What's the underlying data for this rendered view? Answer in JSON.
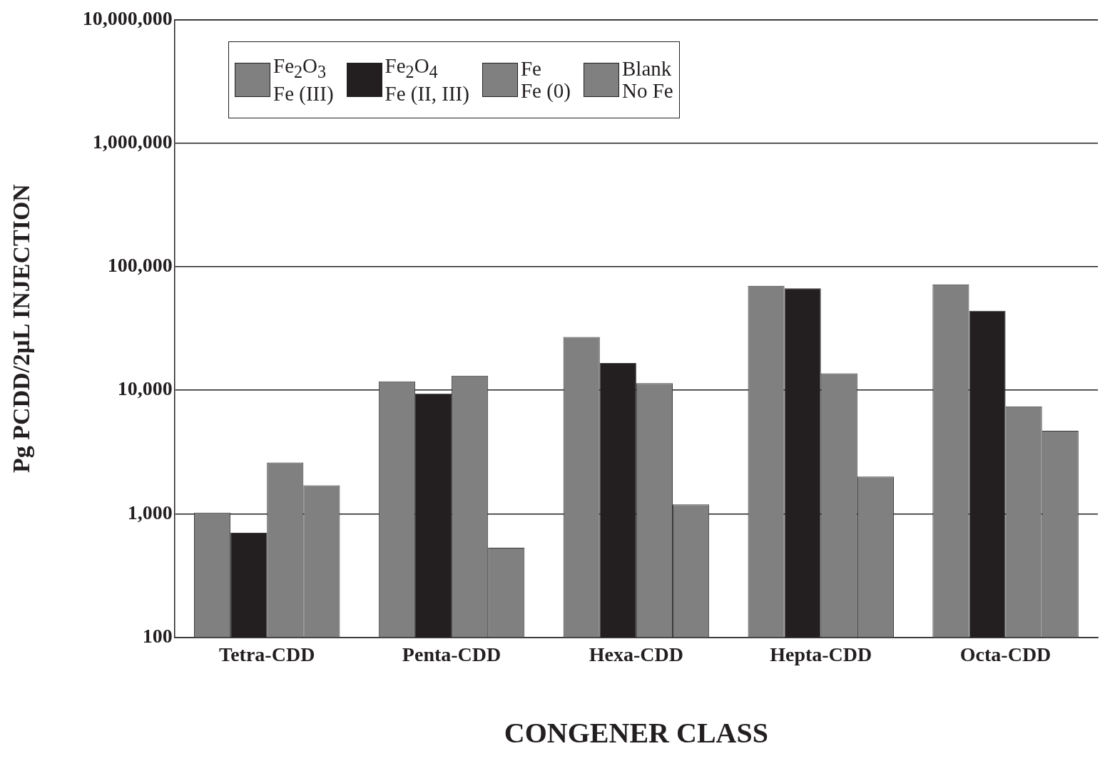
{
  "chart_data": {
    "type": "bar",
    "xlabel": "CONGENER CLASS",
    "ylabel": "Pg PCDD/2µL INJECTION",
    "categories": [
      "Tetra-CDD",
      "Penta-CDD",
      "Hexa-CDD",
      "Hepta-CDD",
      "Octa-CDD"
    ],
    "series": [
      {
        "name": "Fe$_{2}$O$_{3}$\nFe (III)",
        "color": "#808080",
        "values": [
          1020,
          11800,
          27000,
          70000,
          72000
        ]
      },
      {
        "name": "Fe$_{2}$O$_{4}$\nFe (II, III)",
        "color": "#231f20",
        "values": [
          700,
          9400,
          16600,
          67000,
          44000
        ]
      },
      {
        "name": "Fe\nFe (0)",
        "color": "#808080",
        "values": [
          2600,
          13100,
          11400,
          13700,
          7400
        ]
      },
      {
        "name": "Blank\nNo Fe",
        "color": "#808080",
        "values": [
          1700,
          530,
          1190,
          2000,
          4700
        ]
      }
    ],
    "log": "y",
    "ylim": [
      100,
      10000000
    ],
    "yticks": [
      100,
      {
        "value": 1000,
        "label": "1,000"
      },
      {
        "value": 10000,
        "label": "10,000"
      },
      {
        "value": 100000,
        "label": "100,000"
      },
      {
        "value": 1000000,
        "label": "1,000,000"
      },
      {
        "value": 10000000,
        "label": "10,000,000"
      }
    ],
    "grid": "y",
    "legend": "top left"
  }
}
